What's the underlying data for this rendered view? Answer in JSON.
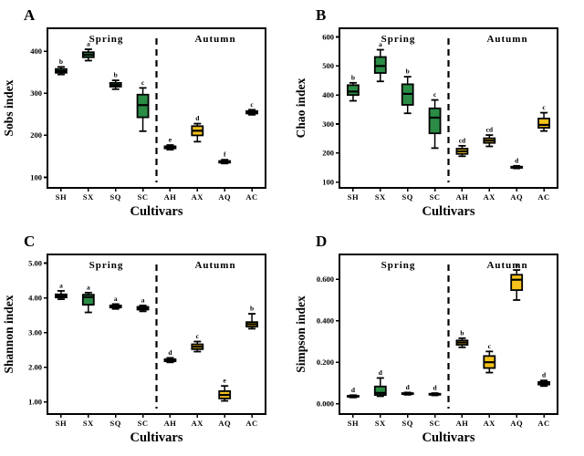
{
  "figure": {
    "background": "#ffffff",
    "text_color": "#000000",
    "colors": {
      "spring_fill": "#2b8c45",
      "autumn_fill": "#f5c21b",
      "box_border": "#000000",
      "median_line": "#000000",
      "divider": "#000000"
    },
    "categories": [
      "SH",
      "SX",
      "SQ",
      "SC",
      "AH",
      "AX",
      "AQ",
      "AC"
    ],
    "group_labels": {
      "left": "Spring",
      "right": "Autumn"
    },
    "xlabel": "Cultivars"
  },
  "chart_data": [
    {
      "panel": "A",
      "type": "box",
      "title": "",
      "ylabel": "Sobs index",
      "xlabel": "Cultivars",
      "ylim": [
        75,
        455
      ],
      "yticks": [
        100,
        200,
        300,
        400
      ],
      "ytick_labels": [
        "100",
        "200",
        "300",
        "400"
      ],
      "categories": [
        "SH",
        "SX",
        "SQ",
        "SC",
        "AH",
        "AX",
        "AQ",
        "AC"
      ],
      "group_labels": [
        "Spring",
        "Autumn"
      ],
      "divider_after_index": 3,
      "boxes": [
        {
          "cat": "SH",
          "season": "spring",
          "letter": "b",
          "low": 345,
          "q1": 349,
          "median": 353,
          "q3": 358,
          "high": 363
        },
        {
          "cat": "SX",
          "season": "spring",
          "letter": "a",
          "low": 378,
          "q1": 386,
          "median": 392,
          "q3": 398,
          "high": 405
        },
        {
          "cat": "SQ",
          "season": "spring",
          "letter": "b",
          "low": 310,
          "q1": 316,
          "median": 320,
          "q3": 325,
          "high": 331
        },
        {
          "cat": "SC",
          "season": "spring",
          "letter": "c",
          "low": 210,
          "q1": 243,
          "median": 272,
          "q3": 297,
          "high": 313
        },
        {
          "cat": "AH",
          "season": "autumn",
          "letter": "e",
          "low": 166,
          "q1": 169,
          "median": 171,
          "q3": 174,
          "high": 177
        },
        {
          "cat": "AX",
          "season": "autumn",
          "letter": "d",
          "low": 185,
          "q1": 200,
          "median": 211,
          "q3": 222,
          "high": 228
        },
        {
          "cat": "AQ",
          "season": "autumn",
          "letter": "f",
          "low": 133,
          "q1": 135,
          "median": 137,
          "q3": 139,
          "high": 142
        },
        {
          "cat": "AC",
          "season": "autumn",
          "letter": "c",
          "low": 249,
          "q1": 252,
          "median": 255,
          "q3": 258,
          "high": 261
        }
      ]
    },
    {
      "panel": "B",
      "type": "box",
      "title": "",
      "ylabel": "Chao index",
      "xlabel": "Cultivars",
      "ylim": [
        80,
        630
      ],
      "yticks": [
        100,
        200,
        300,
        400,
        500,
        600
      ],
      "ytick_labels": [
        "100",
        "200",
        "300",
        "400",
        "500",
        "600"
      ],
      "categories": [
        "SH",
        "SX",
        "SQ",
        "SC",
        "AH",
        "AX",
        "AQ",
        "AC"
      ],
      "group_labels": [
        "Spring",
        "Autumn"
      ],
      "divider_after_index": 3,
      "boxes": [
        {
          "cat": "SH",
          "season": "spring",
          "letter": "b",
          "low": 380,
          "q1": 400,
          "median": 412,
          "q3": 434,
          "high": 442
        },
        {
          "cat": "SX",
          "season": "spring",
          "letter": "a",
          "low": 447,
          "q1": 476,
          "median": 500,
          "q3": 531,
          "high": 556
        },
        {
          "cat": "SQ",
          "season": "spring",
          "letter": "b",
          "low": 337,
          "q1": 366,
          "median": 404,
          "q3": 437,
          "high": 463
        },
        {
          "cat": "SC",
          "season": "spring",
          "letter": "c",
          "low": 217,
          "q1": 268,
          "median": 322,
          "q3": 354,
          "high": 383
        },
        {
          "cat": "AH",
          "season": "autumn",
          "letter": "cd",
          "low": 189,
          "q1": 197,
          "median": 206,
          "q3": 215,
          "high": 225
        },
        {
          "cat": "AX",
          "season": "autumn",
          "letter": "cd",
          "low": 223,
          "q1": 235,
          "median": 243,
          "q3": 251,
          "high": 262
        },
        {
          "cat": "AQ",
          "season": "autumn",
          "letter": "d",
          "low": 147,
          "q1": 149,
          "median": 151,
          "q3": 153,
          "high": 156
        },
        {
          "cat": "AC",
          "season": "autumn",
          "letter": "c",
          "low": 276,
          "q1": 287,
          "median": 297,
          "q3": 319,
          "high": 339
        }
      ]
    },
    {
      "panel": "C",
      "type": "box",
      "title": "",
      "ylabel": "Shannon index",
      "xlabel": "Cultivars",
      "ylim": [
        0.65,
        5.25
      ],
      "yticks": [
        1.0,
        2.0,
        3.0,
        4.0,
        5.0
      ],
      "ytick_labels": [
        "1.00",
        "2.00",
        "3.00",
        "4.00",
        "5.00"
      ],
      "categories": [
        "SH",
        "SX",
        "SQ",
        "SC",
        "AH",
        "AX",
        "AQ",
        "AC"
      ],
      "group_labels": [
        "Spring",
        "Autumn"
      ],
      "divider_after_index": 3,
      "boxes": [
        {
          "cat": "SH",
          "season": "spring",
          "letter": "a",
          "low": 3.96,
          "q1": 4.01,
          "median": 4.05,
          "q3": 4.1,
          "high": 4.2
        },
        {
          "cat": "SX",
          "season": "spring",
          "letter": "a",
          "low": 3.58,
          "q1": 3.8,
          "median": 4.02,
          "q3": 4.09,
          "high": 4.15
        },
        {
          "cat": "SQ",
          "season": "spring",
          "letter": "a",
          "low": 3.68,
          "q1": 3.72,
          "median": 3.75,
          "q3": 3.78,
          "high": 3.82
        },
        {
          "cat": "SC",
          "season": "spring",
          "letter": "a",
          "low": 3.61,
          "q1": 3.66,
          "median": 3.7,
          "q3": 3.74,
          "high": 3.78
        },
        {
          "cat": "AH",
          "season": "autumn",
          "letter": "d",
          "low": 2.14,
          "q1": 2.17,
          "median": 2.2,
          "q3": 2.23,
          "high": 2.27
        },
        {
          "cat": "AX",
          "season": "autumn",
          "letter": "c",
          "low": 2.45,
          "q1": 2.52,
          "median": 2.59,
          "q3": 2.66,
          "high": 2.74
        },
        {
          "cat": "AQ",
          "season": "autumn",
          "letter": "e",
          "low": 1.03,
          "q1": 1.1,
          "median": 1.2,
          "q3": 1.31,
          "high": 1.46
        },
        {
          "cat": "AC",
          "season": "autumn",
          "letter": "b",
          "low": 3.11,
          "q1": 3.17,
          "median": 3.24,
          "q3": 3.3,
          "high": 3.54
        }
      ]
    },
    {
      "panel": "D",
      "type": "box",
      "title": "",
      "ylabel": "Simpson index",
      "xlabel": "Cultivars",
      "ylim": [
        -0.05,
        0.72
      ],
      "yticks": [
        0.0,
        0.2,
        0.4,
        0.6
      ],
      "ytick_labels": [
        "0.000",
        "0.200",
        "0.400",
        "0.600"
      ],
      "categories": [
        "SH",
        "SX",
        "SQ",
        "SC",
        "AH",
        "AX",
        "AQ",
        "AC"
      ],
      "group_labels": [
        "Spring",
        "Autumn"
      ],
      "divider_after_index": 3,
      "boxes": [
        {
          "cat": "SH",
          "season": "spring",
          "letter": "d",
          "low": 0.03,
          "q1": 0.033,
          "median": 0.035,
          "q3": 0.038,
          "high": 0.041
        },
        {
          "cat": "SX",
          "season": "spring",
          "letter": "d",
          "low": 0.036,
          "q1": 0.042,
          "median": 0.052,
          "q3": 0.083,
          "high": 0.124
        },
        {
          "cat": "SQ",
          "season": "spring",
          "letter": "d",
          "low": 0.043,
          "q1": 0.046,
          "median": 0.048,
          "q3": 0.051,
          "high": 0.054
        },
        {
          "cat": "SC",
          "season": "spring",
          "letter": "d",
          "low": 0.04,
          "q1": 0.043,
          "median": 0.045,
          "q3": 0.048,
          "high": 0.051
        },
        {
          "cat": "AH",
          "season": "autumn",
          "letter": "b",
          "low": 0.272,
          "q1": 0.284,
          "median": 0.295,
          "q3": 0.305,
          "high": 0.316
        },
        {
          "cat": "AX",
          "season": "autumn",
          "letter": "c",
          "low": 0.15,
          "q1": 0.172,
          "median": 0.2,
          "q3": 0.23,
          "high": 0.252
        },
        {
          "cat": "AQ",
          "season": "autumn",
          "letter": "a",
          "low": 0.5,
          "q1": 0.548,
          "median": 0.598,
          "q3": 0.622,
          "high": 0.645
        },
        {
          "cat": "AC",
          "season": "autumn",
          "letter": "d",
          "low": 0.085,
          "q1": 0.092,
          "median": 0.098,
          "q3": 0.105,
          "high": 0.112
        }
      ]
    }
  ]
}
